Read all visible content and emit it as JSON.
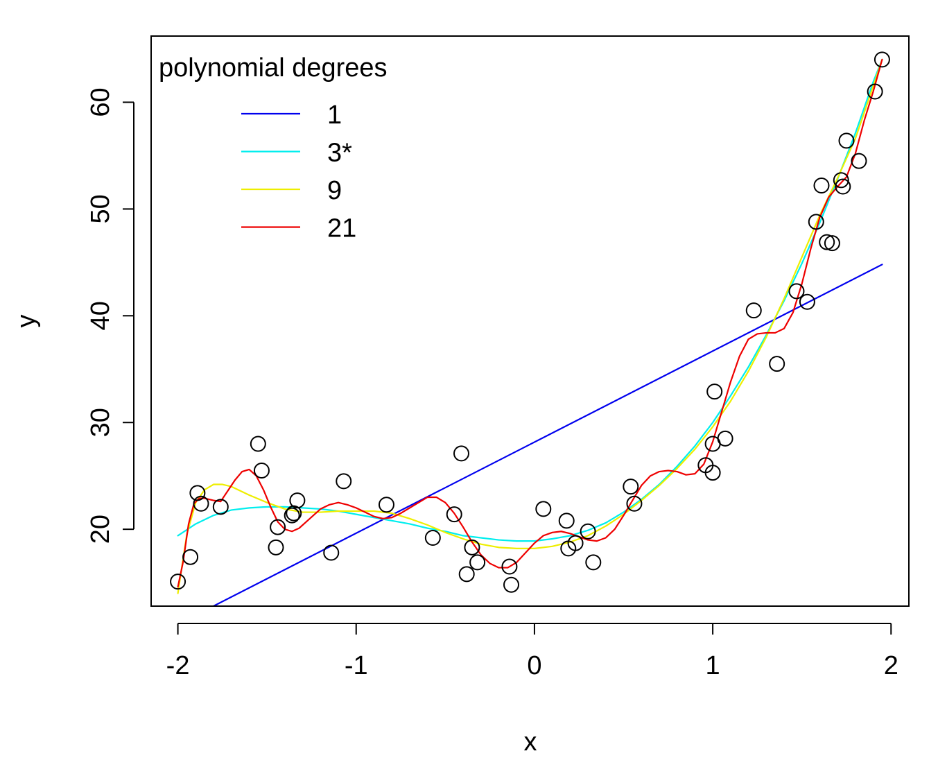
{
  "chart_data": {
    "type": "scatter",
    "xlabel": "x",
    "ylabel": "y",
    "xlim": [
      -2.15,
      2.1
    ],
    "ylim": [
      12.8,
      66.2
    ],
    "xticks": [
      -2,
      -1,
      0,
      1,
      2
    ],
    "yticks": [
      20,
      30,
      40,
      50,
      60
    ],
    "xtick_labels": [
      "-2",
      "-1",
      "0",
      "1",
      "2"
    ],
    "ytick_labels": [
      "20",
      "30",
      "40",
      "50",
      "60"
    ],
    "grid": false,
    "legend": {
      "title": "polynomial degrees",
      "position": "top-left",
      "entries": [
        {
          "label": "1",
          "color": "#0000ee"
        },
        {
          "label": "3*",
          "color": "#00eeee"
        },
        {
          "label": "9",
          "color": "#eeee00"
        },
        {
          "label": "21",
          "color": "#ee0000"
        }
      ]
    },
    "points": [
      [
        -2.0,
        15.1
      ],
      [
        -1.93,
        17.4
      ],
      [
        -1.89,
        23.4
      ],
      [
        -1.87,
        22.4
      ],
      [
        -1.76,
        22.1
      ],
      [
        -1.55,
        28.0
      ],
      [
        -1.53,
        25.5
      ],
      [
        -1.45,
        18.3
      ],
      [
        -1.44,
        20.2
      ],
      [
        -1.36,
        21.3
      ],
      [
        -1.35,
        21.5
      ],
      [
        -1.33,
        22.7
      ],
      [
        -1.14,
        17.8
      ],
      [
        -1.07,
        24.5
      ],
      [
        -0.83,
        22.3
      ],
      [
        -0.57,
        19.2
      ],
      [
        -0.45,
        21.4
      ],
      [
        -0.41,
        27.1
      ],
      [
        -0.38,
        15.8
      ],
      [
        -0.35,
        18.3
      ],
      [
        -0.32,
        16.9
      ],
      [
        -0.14,
        16.5
      ],
      [
        -0.13,
        14.8
      ],
      [
        0.05,
        21.9
      ],
      [
        0.18,
        20.8
      ],
      [
        0.19,
        18.2
      ],
      [
        0.23,
        18.7
      ],
      [
        0.3,
        19.8
      ],
      [
        0.33,
        16.9
      ],
      [
        0.54,
        24.0
      ],
      [
        0.56,
        22.4
      ],
      [
        0.96,
        26.0
      ],
      [
        1.0,
        28.0
      ],
      [
        1.0,
        25.3
      ],
      [
        1.01,
        32.9
      ],
      [
        1.07,
        28.5
      ],
      [
        1.23,
        40.5
      ],
      [
        1.36,
        35.5
      ],
      [
        1.47,
        42.3
      ],
      [
        1.53,
        41.3
      ],
      [
        1.58,
        48.8
      ],
      [
        1.61,
        52.2
      ],
      [
        1.64,
        46.9
      ],
      [
        1.67,
        46.8
      ],
      [
        1.72,
        52.7
      ],
      [
        1.73,
        52.1
      ],
      [
        1.75,
        56.4
      ],
      [
        1.82,
        54.5
      ],
      [
        1.91,
        61.0
      ],
      [
        1.95,
        64.0
      ]
    ],
    "series": [
      {
        "name": "1",
        "color": "#0000ee",
        "x": [
          -2.0,
          1.95
        ],
        "y": [
          11.1,
          44.8
        ]
      },
      {
        "name": "3*",
        "color": "#00eeee",
        "x": [
          -2.0,
          -1.9,
          -1.8,
          -1.7,
          -1.6,
          -1.5,
          -1.4,
          -1.3,
          -1.2,
          -1.1,
          -1.0,
          -0.9,
          -0.8,
          -0.7,
          -0.6,
          -0.5,
          -0.4,
          -0.3,
          -0.2,
          -0.1,
          0.0,
          0.1,
          0.2,
          0.3,
          0.4,
          0.5,
          0.6,
          0.7,
          0.8,
          0.9,
          1.0,
          1.1,
          1.2,
          1.3,
          1.4,
          1.5,
          1.6,
          1.7,
          1.8,
          1.9,
          1.95
        ],
        "y": [
          19.4,
          20.5,
          21.3,
          21.8,
          22.0,
          22.1,
          22.1,
          22.0,
          21.9,
          21.7,
          21.4,
          21.1,
          20.8,
          20.5,
          20.1,
          19.8,
          19.4,
          19.2,
          19.0,
          18.9,
          18.9,
          19.1,
          19.4,
          19.9,
          20.6,
          21.6,
          22.8,
          24.2,
          25.9,
          27.8,
          30.0,
          32.5,
          35.2,
          38.2,
          41.4,
          44.9,
          48.7,
          52.8,
          57.1,
          61.9,
          64.0
        ]
      },
      {
        "name": "9",
        "color": "#eeee00",
        "x": [
          -2.0,
          -1.95,
          -1.9,
          -1.85,
          -1.8,
          -1.75,
          -1.7,
          -1.6,
          -1.5,
          -1.4,
          -1.3,
          -1.2,
          -1.1,
          -1.0,
          -0.9,
          -0.8,
          -0.7,
          -0.6,
          -0.5,
          -0.4,
          -0.3,
          -0.2,
          -0.1,
          0.0,
          0.1,
          0.2,
          0.3,
          0.4,
          0.5,
          0.6,
          0.7,
          0.8,
          0.9,
          1.0,
          1.1,
          1.2,
          1.3,
          1.4,
          1.5,
          1.6,
          1.7,
          1.8,
          1.9,
          1.95
        ],
        "y": [
          14.0,
          19.5,
          22.5,
          23.7,
          24.2,
          24.2,
          24.0,
          23.2,
          22.5,
          21.9,
          21.6,
          21.6,
          21.7,
          21.7,
          21.7,
          21.5,
          21.0,
          20.4,
          19.7,
          19.1,
          18.6,
          18.3,
          18.2,
          18.2,
          18.4,
          18.8,
          19.4,
          20.3,
          21.4,
          22.7,
          24.1,
          25.7,
          27.5,
          29.6,
          32.0,
          34.8,
          38.0,
          41.6,
          45.5,
          49.4,
          52.9,
          56.6,
          61.5,
          64.0
        ]
      },
      {
        "name": "21",
        "color": "#ee0000",
        "x": [
          -2.0,
          -1.97,
          -1.94,
          -1.91,
          -1.88,
          -1.85,
          -1.8,
          -1.76,
          -1.72,
          -1.68,
          -1.64,
          -1.6,
          -1.56,
          -1.52,
          -1.48,
          -1.44,
          -1.4,
          -1.36,
          -1.32,
          -1.28,
          -1.24,
          -1.2,
          -1.15,
          -1.1,
          -1.05,
          -1.0,
          -0.95,
          -0.9,
          -0.85,
          -0.8,
          -0.75,
          -0.7,
          -0.65,
          -0.6,
          -0.55,
          -0.5,
          -0.45,
          -0.4,
          -0.35,
          -0.3,
          -0.25,
          -0.2,
          -0.15,
          -0.1,
          -0.05,
          0.0,
          0.05,
          0.1,
          0.15,
          0.2,
          0.25,
          0.3,
          0.35,
          0.4,
          0.45,
          0.5,
          0.55,
          0.6,
          0.65,
          0.7,
          0.75,
          0.8,
          0.85,
          0.9,
          0.95,
          1.0,
          1.05,
          1.1,
          1.15,
          1.2,
          1.25,
          1.3,
          1.35,
          1.4,
          1.45,
          1.5,
          1.55,
          1.6,
          1.65,
          1.7,
          1.75,
          1.8,
          1.85,
          1.9,
          1.95
        ],
        "y": [
          14.6,
          17.0,
          20.5,
          22.4,
          22.9,
          22.9,
          22.7,
          22.6,
          23.6,
          24.6,
          25.4,
          25.6,
          25.0,
          23.7,
          22.1,
          20.7,
          20.0,
          19.8,
          20.1,
          20.7,
          21.3,
          21.9,
          22.3,
          22.5,
          22.3,
          22.0,
          21.6,
          21.2,
          21.0,
          21.1,
          21.5,
          22.0,
          22.5,
          23.0,
          23.0,
          22.5,
          21.5,
          20.2,
          18.8,
          17.6,
          16.8,
          16.4,
          16.4,
          16.9,
          17.8,
          18.7,
          19.4,
          19.7,
          19.8,
          19.6,
          19.3,
          19.0,
          18.9,
          19.2,
          20.0,
          21.3,
          22.7,
          24.1,
          25.0,
          25.4,
          25.5,
          25.4,
          25.1,
          25.2,
          26.1,
          28.2,
          31.0,
          33.8,
          36.2,
          37.8,
          38.3,
          38.4,
          38.4,
          38.8,
          40.3,
          43.0,
          46.3,
          49.2,
          51.1,
          52.1,
          53.0,
          55.2,
          58.3,
          61.0,
          64.0
        ]
      }
    ]
  }
}
